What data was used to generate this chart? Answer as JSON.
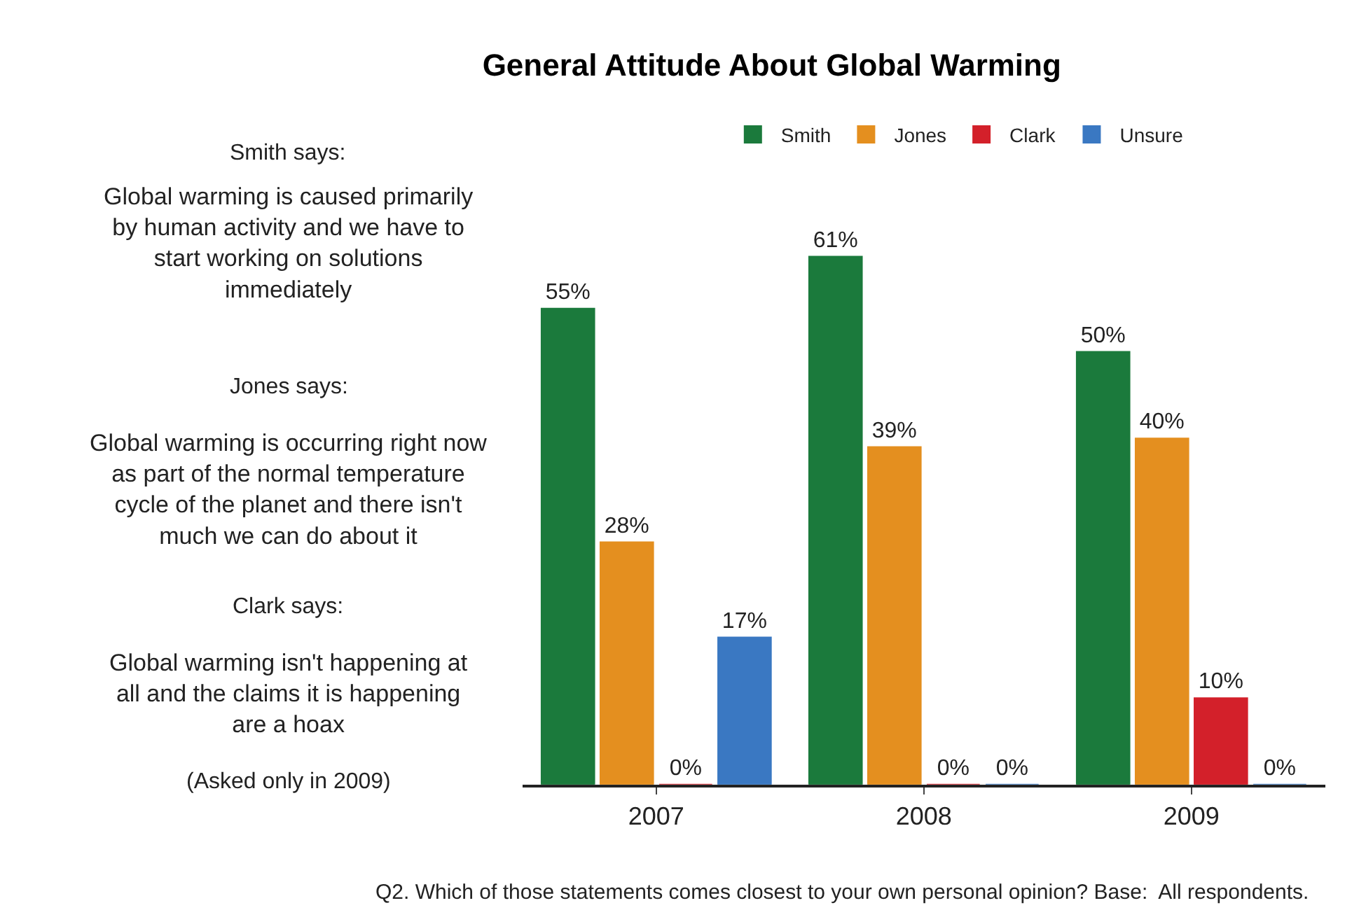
{
  "chart_data": {
    "type": "bar",
    "title": "General Attitude About Global Warming",
    "categories": [
      "2007",
      "2008",
      "2009"
    ],
    "series": [
      {
        "name": "Smith",
        "color": "#1b7a3c",
        "values": [
          55,
          61,
          50
        ],
        "value_labels": [
          "55%",
          "61%",
          "50%"
        ]
      },
      {
        "name": "Jones",
        "color": "#e48f1f",
        "values": [
          28,
          39,
          40
        ],
        "value_labels": [
          "28%",
          "39%",
          "40%"
        ]
      },
      {
        "name": "Clark",
        "color": "#d3202a",
        "values": [
          0,
          0,
          10
        ],
        "value_labels": [
          "0%",
          "0%",
          "10%"
        ]
      },
      {
        "name": "Unsure",
        "color": "#3a78c2",
        "values": [
          17,
          0,
          0
        ],
        "value_labels": [
          "17%",
          "0%",
          "0%"
        ]
      }
    ],
    "legend": "top right",
    "annotations": [
      "Smith says:",
      "Global warming is caused primarily by human activity and we have to start working on solutions immediately",
      "Jones says:",
      "Global warming is occurring right now as part of the normal temperature cycle of the planet and there isn't much we can do about it",
      "Clark says:",
      "Global warming isn't happening at all and the claims it is happening are a hoax",
      "(Asked only in 2009)",
      "Q2. Which of those statements comes closest to your own personal opinion? Base:  All respondents."
    ]
  }
}
